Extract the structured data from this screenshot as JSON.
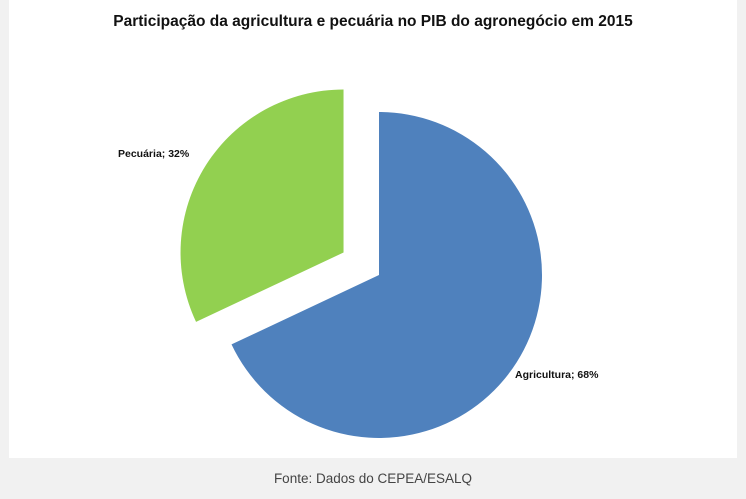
{
  "chart_data": {
    "type": "pie",
    "title": "Participação da agricultura e pecuária no PIB do agronegócio em 2015",
    "slices": [
      {
        "label": "Agricultura",
        "value": 68,
        "display": "Agricultura; 68%",
        "color": "#4f81bd",
        "exploded": false
      },
      {
        "label": "Pecuária",
        "value": 32,
        "display": "Pecuária; 32%",
        "color": "#92d050",
        "exploded": true
      }
    ],
    "legend": false
  },
  "caption": "Fonte: Dados do CEPEA/ESALQ"
}
